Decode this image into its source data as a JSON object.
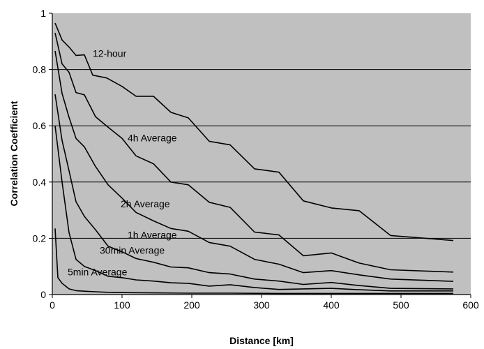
{
  "chart_data": {
    "type": "line",
    "title": "",
    "xlabel": "Distance  [km]",
    "ylabel": "Correlation Coefficient",
    "xlim": [
      0,
      600
    ],
    "ylim": [
      0,
      1
    ],
    "xticks": [
      0,
      100,
      200,
      300,
      400,
      500,
      600
    ],
    "yticks": [
      0,
      0.2,
      0.4,
      0.6,
      0.8,
      1
    ],
    "ytick_labels": [
      "0",
      "0.2",
      "0.4",
      "0.6",
      "0.8",
      "1"
    ],
    "grid": "horizontal",
    "plot_background": "#c0c0c0",
    "line_color": "#000000",
    "series": [
      {
        "name": "12-hour",
        "label_at": [
          58,
          0.845
        ],
        "points": [
          [
            4,
            0.965
          ],
          [
            14,
            0.905
          ],
          [
            24,
            0.88
          ],
          [
            34,
            0.85
          ],
          [
            46,
            0.852
          ],
          [
            58,
            0.78
          ],
          [
            78,
            0.77
          ],
          [
            100,
            0.74
          ],
          [
            120,
            0.705
          ],
          [
            145,
            0.705
          ],
          [
            170,
            0.648
          ],
          [
            195,
            0.628
          ],
          [
            225,
            0.545
          ],
          [
            255,
            0.532
          ],
          [
            290,
            0.447
          ],
          [
            325,
            0.435
          ],
          [
            360,
            0.333
          ],
          [
            400,
            0.308
          ],
          [
            440,
            0.298
          ],
          [
            485,
            0.21
          ],
          [
            575,
            0.192
          ]
        ]
      },
      {
        "name": "4h Average",
        "label_at": [
          108,
          0.545
        ],
        "points": [
          [
            4,
            0.93
          ],
          [
            14,
            0.82
          ],
          [
            24,
            0.79
          ],
          [
            34,
            0.718
          ],
          [
            46,
            0.71
          ],
          [
            62,
            0.632
          ],
          [
            80,
            0.595
          ],
          [
            100,
            0.555
          ],
          [
            120,
            0.493
          ],
          [
            145,
            0.465
          ],
          [
            170,
            0.4
          ],
          [
            195,
            0.39
          ],
          [
            225,
            0.328
          ],
          [
            255,
            0.31
          ],
          [
            290,
            0.222
          ],
          [
            325,
            0.212
          ],
          [
            360,
            0.138
          ],
          [
            400,
            0.148
          ],
          [
            440,
            0.112
          ],
          [
            485,
            0.088
          ],
          [
            575,
            0.08
          ]
        ]
      },
      {
        "name": "2h Average",
        "label_at": [
          98,
          0.31
        ],
        "points": [
          [
            4,
            0.866
          ],
          [
            14,
            0.715
          ],
          [
            24,
            0.63
          ],
          [
            34,
            0.555
          ],
          [
            46,
            0.525
          ],
          [
            62,
            0.455
          ],
          [
            80,
            0.39
          ],
          [
            100,
            0.343
          ],
          [
            120,
            0.292
          ],
          [
            145,
            0.262
          ],
          [
            170,
            0.235
          ],
          [
            195,
            0.225
          ],
          [
            225,
            0.185
          ],
          [
            255,
            0.172
          ],
          [
            290,
            0.125
          ],
          [
            325,
            0.108
          ],
          [
            360,
            0.078
          ],
          [
            400,
            0.085
          ],
          [
            440,
            0.07
          ],
          [
            485,
            0.055
          ],
          [
            575,
            0.047
          ]
        ]
      },
      {
        "name": "1h Average",
        "label_at": [
          108,
          0.2
        ],
        "points": [
          [
            4,
            0.712
          ],
          [
            14,
            0.548
          ],
          [
            24,
            0.44
          ],
          [
            34,
            0.33
          ],
          [
            46,
            0.278
          ],
          [
            62,
            0.23
          ],
          [
            80,
            0.172
          ],
          [
            100,
            0.152
          ],
          [
            120,
            0.128
          ],
          [
            145,
            0.115
          ],
          [
            170,
            0.098
          ],
          [
            195,
            0.095
          ],
          [
            225,
            0.078
          ],
          [
            255,
            0.073
          ],
          [
            290,
            0.055
          ],
          [
            325,
            0.048
          ],
          [
            360,
            0.036
          ],
          [
            400,
            0.043
          ],
          [
            440,
            0.032
          ],
          [
            485,
            0.022
          ],
          [
            575,
            0.02
          ]
        ]
      },
      {
        "name": "30min Average",
        "label_at": [
          68,
          0.145
        ],
        "points": [
          [
            4,
            0.6
          ],
          [
            14,
            0.4
          ],
          [
            24,
            0.22
          ],
          [
            34,
            0.125
          ],
          [
            46,
            0.1
          ],
          [
            62,
            0.085
          ],
          [
            80,
            0.065
          ],
          [
            100,
            0.06
          ],
          [
            120,
            0.052
          ],
          [
            145,
            0.048
          ],
          [
            170,
            0.042
          ],
          [
            195,
            0.04
          ],
          [
            225,
            0.03
          ],
          [
            255,
            0.035
          ],
          [
            290,
            0.025
          ],
          [
            325,
            0.018
          ],
          [
            360,
            0.02
          ],
          [
            400,
            0.022
          ],
          [
            440,
            0.017
          ],
          [
            485,
            0.013
          ],
          [
            575,
            0.013
          ]
        ]
      },
      {
        "name": "5min Average",
        "label_at": [
          22,
          0.068
        ],
        "points": [
          [
            4,
            0.235
          ],
          [
            8,
            0.06
          ],
          [
            14,
            0.04
          ],
          [
            24,
            0.02
          ],
          [
            34,
            0.014
          ],
          [
            46,
            0.012
          ],
          [
            62,
            0.01
          ],
          [
            80,
            0.008
          ],
          [
            100,
            0.007
          ],
          [
            145,
            0.006
          ],
          [
            195,
            0.005
          ],
          [
            255,
            0.005
          ],
          [
            325,
            0.004
          ],
          [
            400,
            0.004
          ],
          [
            485,
            0.004
          ],
          [
            575,
            0.004
          ]
        ]
      }
    ]
  }
}
